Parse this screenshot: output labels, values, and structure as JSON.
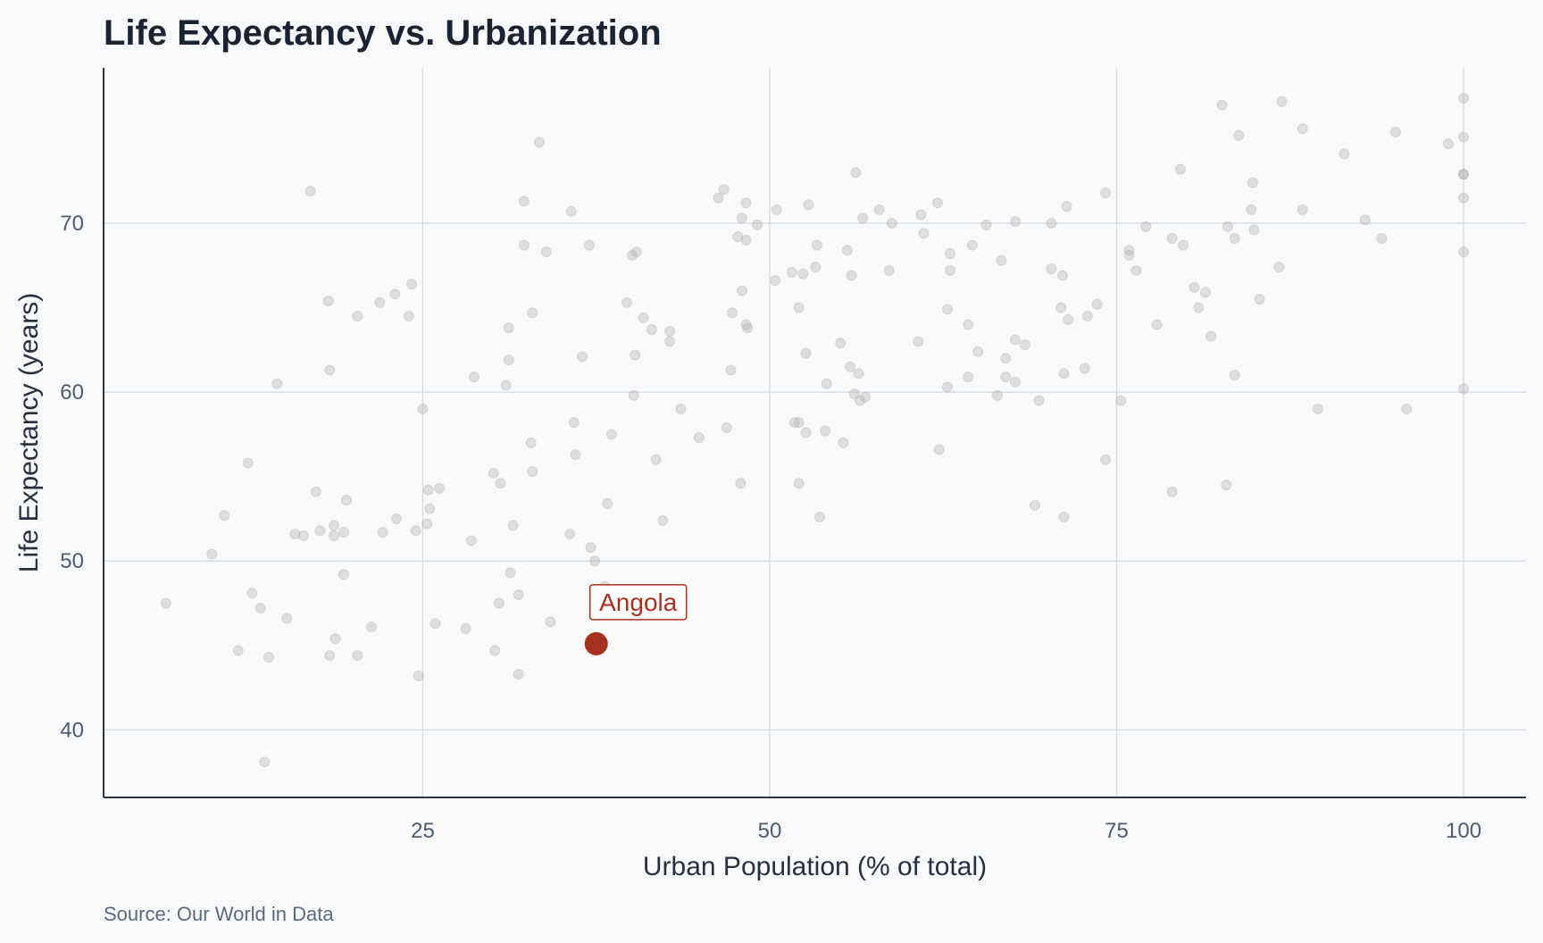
{
  "chart_data": {
    "type": "scatter",
    "title": "Life Expectancy vs. Urbanization",
    "xlabel": "Urban Population (% of total)",
    "ylabel": "Life Expectancy (years)",
    "source": "Source: Our World in Data",
    "xlim": [
      2.0,
      104.5
    ],
    "ylim": [
      36.0,
      79.2
    ],
    "xticks": [
      25,
      50,
      75,
      100
    ],
    "yticks": [
      40,
      50,
      60,
      70
    ],
    "grid": true,
    "colors": {
      "background": "#f7f9fb",
      "points": "#b4b4b4",
      "highlight": "#a8301f",
      "text": "#1b2333"
    },
    "highlight": {
      "label": "Angola",
      "x": 37.5,
      "y": 45.1
    },
    "points": [
      [
        6.5,
        47.5
      ],
      [
        9.8,
        50.4
      ],
      [
        10.7,
        52.7
      ],
      [
        11.7,
        44.7
      ],
      [
        12.4,
        55.8
      ],
      [
        12.7,
        48.1
      ],
      [
        13.3,
        47.2
      ],
      [
        13.6,
        38.1
      ],
      [
        13.9,
        44.3
      ],
      [
        14.5,
        60.5
      ],
      [
        15.2,
        46.6
      ],
      [
        15.8,
        51.6
      ],
      [
        16.4,
        51.5
      ],
      [
        16.9,
        71.9
      ],
      [
        17.3,
        54.1
      ],
      [
        17.6,
        51.8
      ],
      [
        18.2,
        65.4
      ],
      [
        18.3,
        44.4
      ],
      [
        18.3,
        61.3
      ],
      [
        18.6,
        52.1
      ],
      [
        18.6,
        51.5
      ],
      [
        18.7,
        45.4
      ],
      [
        19.3,
        51.7
      ],
      [
        19.3,
        49.2
      ],
      [
        19.5,
        53.6
      ],
      [
        20.3,
        64.5
      ],
      [
        20.3,
        44.4
      ],
      [
        21.3,
        46.1
      ],
      [
        21.9,
        65.3
      ],
      [
        22.1,
        51.7
      ],
      [
        23.0,
        65.8
      ],
      [
        23.1,
        52.5
      ],
      [
        24.0,
        64.5
      ],
      [
        24.2,
        66.4
      ],
      [
        24.5,
        51.8
      ],
      [
        24.7,
        43.2
      ],
      [
        25.0,
        59.0
      ],
      [
        25.3,
        52.2
      ],
      [
        25.4,
        54.2
      ],
      [
        25.5,
        53.1
      ],
      [
        25.9,
        46.3
      ],
      [
        26.2,
        54.3
      ],
      [
        28.1,
        46.0
      ],
      [
        28.5,
        51.2
      ],
      [
        28.7,
        60.9
      ],
      [
        30.1,
        55.2
      ],
      [
        30.2,
        44.7
      ],
      [
        30.5,
        47.5
      ],
      [
        30.6,
        54.6
      ],
      [
        31.0,
        60.4
      ],
      [
        31.2,
        61.9
      ],
      [
        31.2,
        63.8
      ],
      [
        31.3,
        49.3
      ],
      [
        31.5,
        52.1
      ],
      [
        31.9,
        43.3
      ],
      [
        31.9,
        48.0
      ],
      [
        32.3,
        71.3
      ],
      [
        32.3,
        68.7
      ],
      [
        32.8,
        57.0
      ],
      [
        32.9,
        55.3
      ],
      [
        32.9,
        64.7
      ],
      [
        33.4,
        74.8
      ],
      [
        33.9,
        68.3
      ],
      [
        34.2,
        46.4
      ],
      [
        35.6,
        51.6
      ],
      [
        35.7,
        70.7
      ],
      [
        35.9,
        58.2
      ],
      [
        36.0,
        56.3
      ],
      [
        36.5,
        62.1
      ],
      [
        37.1,
        50.8
      ],
      [
        37.0,
        68.7
      ],
      [
        37.4,
        50.0
      ],
      [
        38.1,
        48.5
      ],
      [
        38.3,
        53.4
      ],
      [
        38.6,
        57.5
      ],
      [
        39.7,
        65.3
      ],
      [
        40.1,
        68.1
      ],
      [
        40.2,
        59.8
      ],
      [
        40.3,
        62.2
      ],
      [
        40.4,
        68.3
      ],
      [
        40.9,
        64.4
      ],
      [
        41.5,
        63.7
      ],
      [
        41.8,
        56.0
      ],
      [
        42.3,
        52.4
      ],
      [
        42.8,
        63.0
      ],
      [
        42.8,
        63.6
      ],
      [
        43.6,
        59.0
      ],
      [
        44.9,
        57.3
      ],
      [
        46.3,
        71.5
      ],
      [
        46.7,
        72.0
      ],
      [
        46.9,
        57.9
      ],
      [
        47.2,
        61.3
      ],
      [
        47.3,
        64.7
      ],
      [
        47.7,
        69.2
      ],
      [
        47.9,
        54.6
      ],
      [
        48.0,
        70.3
      ],
      [
        48.0,
        66.0
      ],
      [
        48.3,
        71.2
      ],
      [
        48.3,
        64.0
      ],
      [
        48.3,
        69.0
      ],
      [
        48.4,
        63.8
      ],
      [
        49.1,
        69.9
      ],
      [
        50.4,
        66.6
      ],
      [
        50.5,
        70.8
      ],
      [
        51.6,
        67.1
      ],
      [
        51.8,
        58.2
      ],
      [
        52.1,
        54.6
      ],
      [
        52.1,
        65.0
      ],
      [
        52.1,
        58.2
      ],
      [
        52.4,
        67.0
      ],
      [
        52.6,
        62.3
      ],
      [
        52.6,
        57.6
      ],
      [
        52.8,
        71.1
      ],
      [
        53.3,
        67.4
      ],
      [
        53.4,
        68.7
      ],
      [
        53.6,
        52.6
      ],
      [
        54.0,
        57.7
      ],
      [
        54.1,
        60.5
      ],
      [
        55.1,
        62.9
      ],
      [
        55.3,
        57.0
      ],
      [
        55.6,
        68.4
      ],
      [
        55.8,
        61.5
      ],
      [
        55.9,
        66.9
      ],
      [
        56.1,
        59.9
      ],
      [
        56.2,
        73.0
      ],
      [
        56.4,
        61.1
      ],
      [
        56.5,
        59.5
      ],
      [
        56.7,
        70.3
      ],
      [
        56.9,
        59.7
      ],
      [
        57.9,
        70.8
      ],
      [
        58.6,
        67.2
      ],
      [
        58.8,
        70.0
      ],
      [
        60.7,
        63.0
      ],
      [
        60.9,
        70.5
      ],
      [
        61.1,
        69.4
      ],
      [
        62.1,
        71.2
      ],
      [
        62.2,
        56.6
      ],
      [
        62.8,
        60.3
      ],
      [
        62.8,
        64.9
      ],
      [
        63.0,
        67.2
      ],
      [
        63.0,
        68.2
      ],
      [
        64.3,
        60.9
      ],
      [
        64.3,
        64.0
      ],
      [
        64.6,
        68.7
      ],
      [
        65.0,
        62.4
      ],
      [
        65.6,
        69.9
      ],
      [
        66.4,
        59.8
      ],
      [
        66.7,
        67.8
      ],
      [
        67.0,
        62.0
      ],
      [
        67.0,
        60.9
      ],
      [
        67.7,
        60.6
      ],
      [
        67.7,
        63.1
      ],
      [
        67.7,
        70.1
      ],
      [
        68.4,
        62.8
      ],
      [
        69.1,
        53.3
      ],
      [
        69.4,
        59.5
      ],
      [
        70.3,
        70.0
      ],
      [
        70.3,
        67.3
      ],
      [
        71.0,
        65.0
      ],
      [
        71.1,
        66.9
      ],
      [
        71.2,
        61.1
      ],
      [
        71.2,
        52.6
      ],
      [
        71.4,
        71.0
      ],
      [
        71.5,
        64.3
      ],
      [
        72.7,
        61.4
      ],
      [
        72.9,
        64.5
      ],
      [
        73.6,
        65.2
      ],
      [
        74.2,
        71.8
      ],
      [
        74.2,
        56.0
      ],
      [
        75.3,
        59.5
      ],
      [
        75.9,
        68.4
      ],
      [
        75.9,
        68.1
      ],
      [
        76.4,
        67.2
      ],
      [
        77.1,
        69.8
      ],
      [
        77.9,
        64.0
      ],
      [
        79.0,
        54.1
      ],
      [
        79.0,
        69.1
      ],
      [
        79.6,
        73.2
      ],
      [
        79.8,
        68.7
      ],
      [
        80.6,
        66.2
      ],
      [
        80.9,
        65.0
      ],
      [
        81.4,
        65.9
      ],
      [
        81.8,
        63.3
      ],
      [
        82.6,
        77.0
      ],
      [
        82.9,
        54.5
      ],
      [
        83.0,
        69.8
      ],
      [
        83.5,
        69.1
      ],
      [
        83.5,
        61.0
      ],
      [
        83.8,
        75.2
      ],
      [
        84.7,
        70.8
      ],
      [
        84.8,
        72.4
      ],
      [
        84.9,
        69.6
      ],
      [
        85.3,
        65.5
      ],
      [
        86.7,
        67.4
      ],
      [
        86.9,
        77.2
      ],
      [
        88.4,
        75.6
      ],
      [
        88.4,
        70.8
      ],
      [
        89.5,
        59.0
      ],
      [
        91.4,
        74.1
      ],
      [
        92.9,
        70.2
      ],
      [
        94.1,
        69.1
      ],
      [
        95.1,
        75.4
      ],
      [
        95.9,
        59.0
      ],
      [
        98.9,
        74.7
      ],
      [
        100.0,
        77.4
      ],
      [
        100.0,
        75.1
      ],
      [
        100.0,
        72.9
      ],
      [
        100.0,
        72.9
      ],
      [
        100.0,
        71.5
      ],
      [
        100.0,
        68.3
      ],
      [
        100.0,
        60.2
      ]
    ]
  }
}
